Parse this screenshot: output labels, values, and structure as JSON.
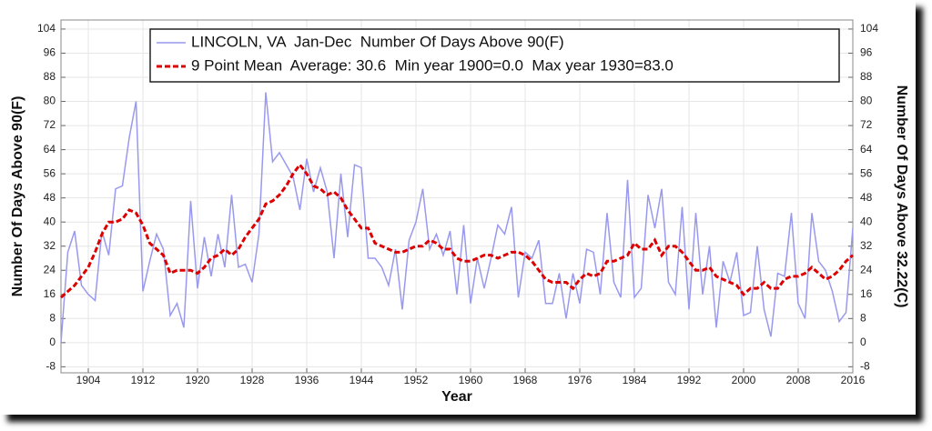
{
  "chart_data": {
    "type": "line",
    "legend_lines": [
      "LINCOLN, VA  Jan-Dec  Number Of Days Above 90(F)",
      "9 Point Mean  Average: 30.6  Min year 1900=0.0  Max year 1930=83.0"
    ],
    "xlabel": "Year",
    "ylabel": "Number Of Days Above 90(F)",
    "y2label": "Number Of Days Above 32.22(C)",
    "x": [
      1900,
      1901,
      1902,
      1903,
      1904,
      1905,
      1906,
      1907,
      1908,
      1909,
      1910,
      1911,
      1912,
      1913,
      1914,
      1915,
      1916,
      1917,
      1918,
      1919,
      1920,
      1921,
      1922,
      1923,
      1924,
      1925,
      1926,
      1927,
      1928,
      1929,
      1930,
      1931,
      1932,
      1933,
      1934,
      1935,
      1936,
      1937,
      1938,
      1939,
      1940,
      1941,
      1942,
      1943,
      1944,
      1945,
      1946,
      1947,
      1948,
      1949,
      1950,
      1951,
      1952,
      1953,
      1954,
      1955,
      1956,
      1957,
      1958,
      1959,
      1960,
      1961,
      1962,
      1963,
      1964,
      1965,
      1966,
      1967,
      1968,
      1969,
      1970,
      1971,
      1972,
      1973,
      1974,
      1975,
      1976,
      1977,
      1978,
      1979,
      1980,
      1981,
      1982,
      1983,
      1984,
      1985,
      1986,
      1987,
      1988,
      1989,
      1990,
      1991,
      1992,
      1993,
      1994,
      1995,
      1996,
      1997,
      1998,
      1999,
      2000,
      2001,
      2002,
      2003,
      2004,
      2005,
      2006,
      2007,
      2008,
      2009,
      2010,
      2011,
      2012,
      2013,
      2014,
      2015,
      2016
    ],
    "series": [
      {
        "name": "LINCOLN, VA  Jan-Dec  Number Of Days Above 90(F)",
        "color": "#9999ee",
        "dashed": false,
        "values": [
          0,
          30,
          37,
          19,
          16,
          14,
          37,
          29,
          51,
          52,
          68,
          80,
          17,
          27,
          36,
          31,
          9,
          13,
          5,
          47,
          18,
          35,
          22,
          36,
          25,
          49,
          25,
          26,
          20,
          36,
          83,
          60,
          63,
          59,
          55,
          44,
          61,
          50,
          58,
          50,
          28,
          56,
          35,
          59,
          58,
          28,
          28,
          25,
          19,
          31,
          11,
          34,
          40,
          51,
          31,
          36,
          29,
          37,
          16,
          39,
          13,
          28,
          18,
          28,
          39,
          36,
          45,
          15,
          30,
          28,
          34,
          13,
          13,
          23,
          8,
          23,
          13,
          31,
          30,
          16,
          43,
          20,
          15,
          54,
          15,
          18,
          49,
          38,
          51,
          20,
          16,
          45,
          11,
          43,
          16,
          32,
          5,
          27,
          20,
          30,
          9,
          10,
          32,
          11,
          2,
          23,
          22,
          43,
          13,
          8,
          43,
          27,
          24,
          17,
          7,
          10,
          38
        ]
      },
      {
        "name": "9 Point Mean  Average: 30.6  Min year 1900=0.0  Max year 1930=83.0",
        "color": "#dd0000",
        "dashed": true,
        "values": [
          15,
          17,
          19,
          22,
          25,
          30,
          36,
          40,
          40,
          41,
          44,
          43,
          39,
          33,
          31,
          29,
          23,
          24,
          24,
          24,
          23,
          25,
          28,
          29,
          31,
          29,
          31,
          35,
          38,
          41,
          46,
          47,
          49,
          52,
          56,
          59,
          56,
          52,
          51,
          49,
          50,
          48,
          44,
          41,
          38,
          38,
          33,
          32,
          31,
          30,
          30,
          31,
          32,
          32,
          34,
          33,
          31,
          31,
          28,
          27,
          27,
          28,
          29,
          29,
          28,
          29,
          30,
          30,
          29,
          27,
          24,
          21,
          20,
          20,
          20,
          18,
          21,
          23,
          22,
          23,
          27,
          27,
          28,
          29,
          33,
          31,
          31,
          34,
          29,
          32,
          32,
          30,
          27,
          24,
          24,
          25,
          22,
          21,
          20,
          19,
          16,
          18,
          18,
          20,
          18,
          18,
          21,
          22,
          22,
          23,
          25,
          23,
          21,
          22,
          24,
          27,
          29
        ]
      }
    ],
    "xlim": [
      1900,
      2016
    ],
    "xticks": [
      1904,
      1912,
      1920,
      1928,
      1936,
      1944,
      1952,
      1960,
      1968,
      1976,
      1984,
      1992,
      2000,
      2008,
      2016
    ],
    "ylim": [
      -10,
      107
    ],
    "yticks": [
      -8,
      0,
      8,
      16,
      24,
      32,
      40,
      48,
      56,
      64,
      72,
      80,
      88,
      96,
      104
    ],
    "y2lim": [
      -10,
      107
    ],
    "y2ticks": [
      -8,
      0,
      8,
      16,
      24,
      32,
      40,
      48,
      56,
      64,
      72,
      80,
      88,
      96,
      104
    ],
    "grid": true
  }
}
